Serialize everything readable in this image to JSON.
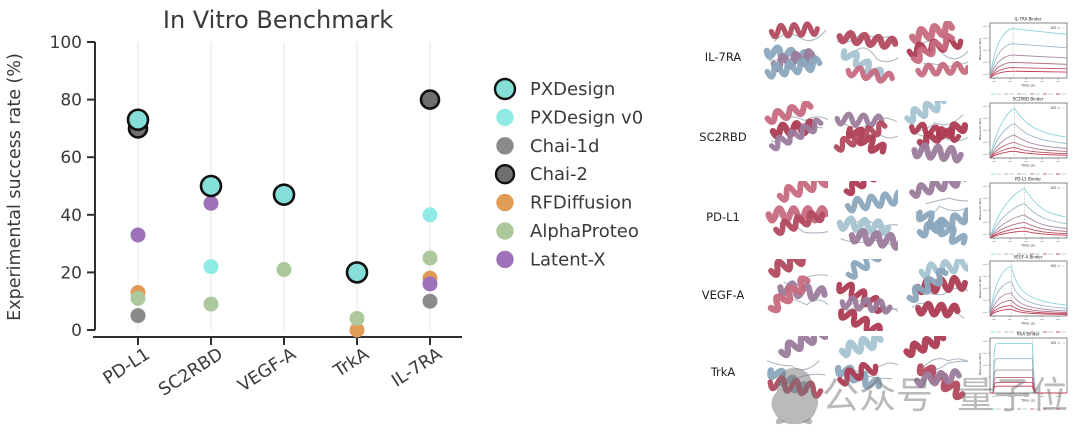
{
  "chart_data": {
    "type": "scatter",
    "title": "In Vitro Benchmark",
    "ylabel": "Experimental success rate (%)",
    "xlabel": "",
    "ylim": [
      0,
      100
    ],
    "yticks": [
      0,
      20,
      40,
      60,
      80,
      100
    ],
    "categories": [
      "PD-L1",
      "SC2RBD",
      "VEGF-A",
      "TrkA",
      "IL-7RA"
    ],
    "grid": "vertical",
    "legend_position": "right",
    "series": [
      {
        "name": "PXDesign",
        "color": "#85ded8",
        "edge": "#111111",
        "values": [
          73,
          50,
          47,
          20,
          null
        ]
      },
      {
        "name": "PXDesign v0",
        "color": "#90ebe4",
        "edge": null,
        "values": [
          null,
          22,
          null,
          null,
          40
        ]
      },
      {
        "name": "Chai-1d",
        "color": "#8a8a8a",
        "edge": null,
        "values": [
          5,
          null,
          null,
          null,
          10
        ]
      },
      {
        "name": "Chai-2",
        "color": "#6f6f6f",
        "edge": "#111111",
        "values": [
          70,
          null,
          null,
          null,
          80
        ]
      },
      {
        "name": "RFDiffusion",
        "color": "#e29b54",
        "edge": null,
        "values": [
          13,
          null,
          null,
          0,
          18
        ]
      },
      {
        "name": "AlphaProteo",
        "color": "#adc89c",
        "edge": null,
        "values": [
          11,
          9,
          21,
          4,
          25
        ]
      },
      {
        "name": "Latent-X",
        "color": "#9e72b8",
        "edge": null,
        "values": [
          33,
          44,
          null,
          null,
          16
        ]
      }
    ]
  },
  "right_panel": {
    "rows": [
      {
        "label": "IL-7RA",
        "mini": {
          "title": "IL-7RA Binder",
          "kd": "KD = …",
          "shape": "plateau",
          "split": 0.3,
          "xlabel": "Time (s)",
          "ylabel": "Response (RU)"
        }
      },
      {
        "label": "SC2RBD",
        "mini": {
          "title": "SC2RBD Binder",
          "kd": "KD = …",
          "shape": "peak_decay",
          "split": 0.32,
          "xlabel": "Time (s)",
          "ylabel": "Response (RU)"
        }
      },
      {
        "label": "PD-L1",
        "mini": {
          "title": "PD-L1 Binder",
          "kd": "KD = …",
          "shape": "peak_decay",
          "split": 0.45,
          "xlabel": "Time (s)",
          "ylabel": "Response (RU)"
        }
      },
      {
        "label": "VEGF-A",
        "mini": {
          "title": "VEGF-A Binder",
          "kd": "KD = …",
          "shape": "sharp_decay",
          "split": 0.28,
          "xlabel": "Time (s)",
          "ylabel": "Response (RU)"
        }
      },
      {
        "label": "TrkA",
        "mini": {
          "title": "TrkA Binder",
          "kd": "KD = …",
          "shape": "pulse",
          "split": 0.55,
          "xlabel": "Time (s)",
          "ylabel": "Response (RU)"
        }
      }
    ],
    "structure_colors": [
      "#b34a5f",
      "#8ba6bd",
      "#9b7c9c",
      "#a6c4d2",
      "#ad3b52",
      "#c76b7f"
    ],
    "mini_curve_colors": [
      "#8ed5dc",
      "#9fb6c6",
      "#a88ca9",
      "#b56a7e",
      "#bd4f62",
      "#c43a50"
    ],
    "mini_curve_scales": [
      0.95,
      0.66,
      0.44,
      0.3,
      0.2,
      0.13
    ]
  },
  "watermark": {
    "text_1": "公众号",
    "text_2": "量子位"
  }
}
